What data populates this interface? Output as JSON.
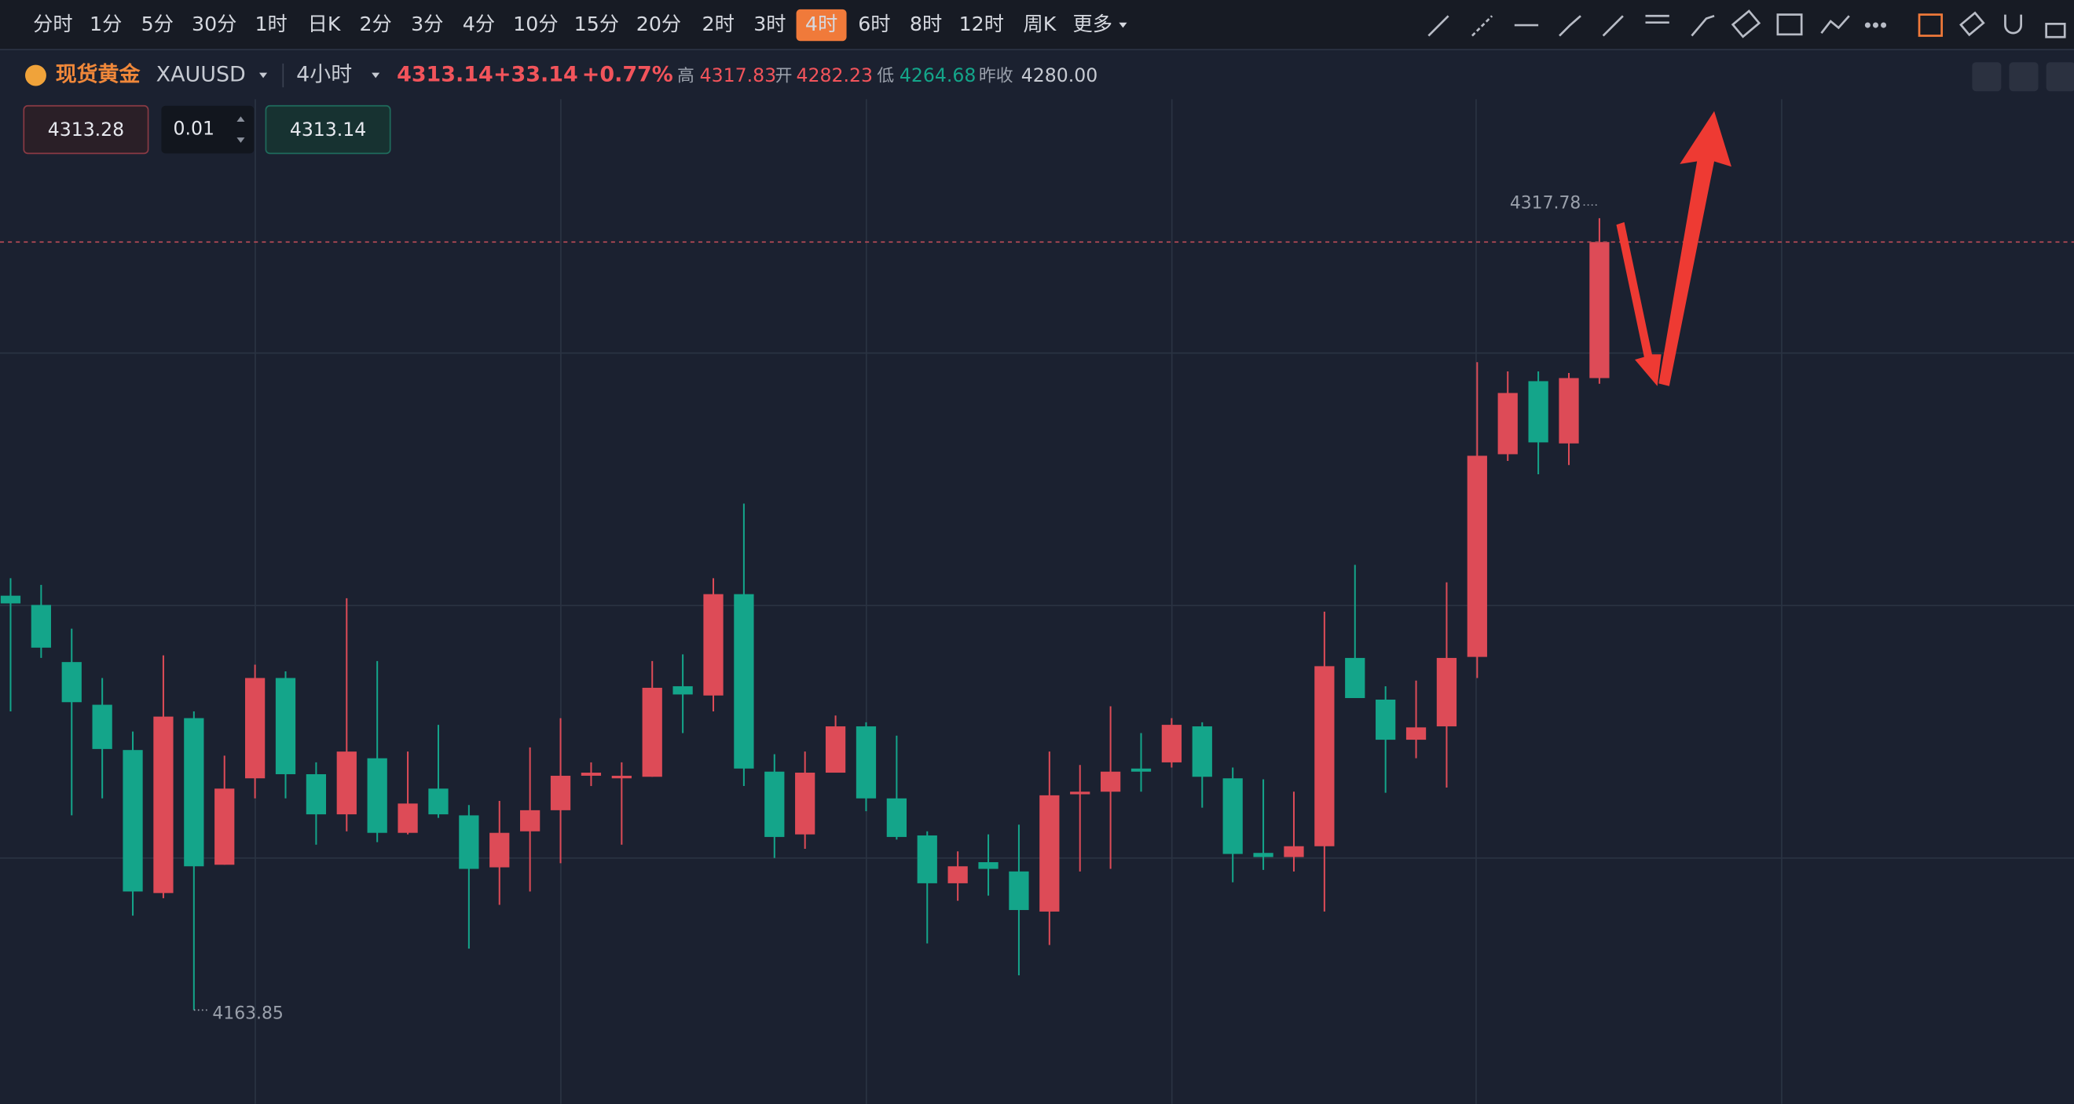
{
  "toolbar": {
    "intervals": [
      "分时",
      "1分",
      "5分",
      "30分",
      "1时",
      "日K",
      "2分",
      "3分",
      "4分",
      "10分",
      "15分",
      "20分",
      "2时",
      "3时",
      "4时",
      "6时",
      "8时",
      "12时",
      "周K",
      "更多"
    ],
    "selected_interval": "4时"
  },
  "header": {
    "symbol": "现货黄金",
    "code": "XAUUSD",
    "period": "4小时",
    "price": "4313.14",
    "change": "+33.14",
    "change_pct": "+0.77%",
    "high_label": "高",
    "high": "4317.83",
    "open_label": "开",
    "open": "4282.23",
    "low_label": "低",
    "low": "4264.68",
    "prev_close_label": "昨收",
    "prev_close": "4280.00"
  },
  "order_panel": {
    "sell_price": "4313.28",
    "lots": "0.01",
    "buy_price": "4313.14"
  },
  "chart_data": {
    "type": "candlestick",
    "up_color": "#dd4b57",
    "down_color": "#14a58a",
    "open": [
      4244.4,
      4242.6,
      4231.5,
      4223.2,
      4214.4,
      4186.6,
      4220.6,
      4192.1,
      4208.9,
      4228.4,
      4209.7,
      4201.9,
      4212.8,
      4198.3,
      4206.9,
      4201.7,
      4191.6,
      4198.6,
      4202.7,
      4209.4,
      4208.9,
      4209.2,
      4226.8,
      4225.0,
      4244.7,
      4210.2,
      4198.0,
      4210.0,
      4219.0,
      4205.0,
      4197.8,
      4188.5,
      4192.6,
      4190.8,
      4183.0,
      4205.8,
      4206.3,
      4210.8,
      4212.0,
      4219.0,
      4208.9,
      4194.4,
      4193.6,
      4195.7,
      4232.3,
      4224.2,
      4216.4,
      4219.0,
      4232.5,
      4271.9,
      4286.1,
      4274.0,
      4286.7
    ],
    "high": [
      4247.8,
      4246.5,
      4238.0,
      4228.4,
      4218.0,
      4232.8,
      4221.9,
      4213.3,
      4231.0,
      4229.7,
      4212.0,
      4243.9,
      4231.7,
      4214.1,
      4219.3,
      4203.7,
      4204.5,
      4214.9,
      4220.6,
      4212.0,
      4212.0,
      4231.7,
      4233.0,
      4247.8,
      4262.3,
      4213.6,
      4214.1,
      4221.1,
      4219.8,
      4217.2,
      4198.6,
      4194.7,
      4198.0,
      4199.9,
      4214.1,
      4211.5,
      4222.9,
      4217.7,
      4220.6,
      4219.8,
      4211.0,
      4208.7,
      4206.3,
      4241.3,
      4250.4,
      4226.8,
      4227.9,
      4247.0,
      4289.8,
      4288.0,
      4288.0,
      4287.7,
      4317.78
    ],
    "low": [
      4221.9,
      4232.3,
      4201.7,
      4205.0,
      4182.2,
      4185.6,
      4163.85,
      4192.1,
      4205.0,
      4205.0,
      4196.0,
      4198.6,
      4196.5,
      4198.0,
      4201.2,
      4175.8,
      4184.3,
      4186.9,
      4192.4,
      4207.4,
      4196.0,
      4209.2,
      4217.7,
      4221.9,
      4207.4,
      4193.4,
      4195.2,
      4210.0,
      4202.5,
      4197.0,
      4176.8,
      4185.1,
      4186.1,
      4170.6,
      4176.5,
      4190.8,
      4191.3,
      4206.3,
      4211.0,
      4203.2,
      4188.7,
      4191.1,
      4190.8,
      4183.0,
      4224.5,
      4206.1,
      4212.8,
      4207.1,
      4228.4,
      4270.6,
      4268.0,
      4269.8,
      4285.6
    ],
    "close": [
      4242.9,
      4234.3,
      4223.7,
      4214.6,
      4186.9,
      4220.9,
      4191.8,
      4206.9,
      4228.4,
      4209.7,
      4201.9,
      4214.1,
      4198.3,
      4204.0,
      4201.9,
      4191.3,
      4198.3,
      4202.7,
      4209.4,
      4210.0,
      4209.4,
      4226.5,
      4225.2,
      4244.7,
      4210.8,
      4197.5,
      4210.0,
      4219.0,
      4205.0,
      4197.5,
      4188.5,
      4191.8,
      4191.3,
      4183.3,
      4205.6,
      4206.3,
      4210.2,
      4210.2,
      4219.3,
      4209.2,
      4194.2,
      4193.6,
      4195.7,
      4230.7,
      4224.5,
      4216.4,
      4218.8,
      4232.3,
      4271.6,
      4283.8,
      4274.2,
      4286.7,
      4313.14
    ],
    "high_marker": {
      "value": 4317.78,
      "label": "4317.78"
    },
    "low_marker": {
      "value": 4163.85,
      "label": "4163.85"
    },
    "last_price": 4313.14
  }
}
